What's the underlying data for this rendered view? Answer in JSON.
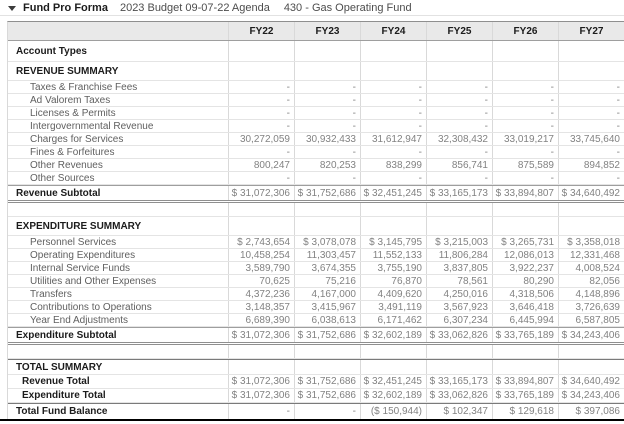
{
  "title_bar": {
    "collapse_icon": "triangle-down-icon",
    "title": "Fund Pro Forma",
    "budget_label": "2023 Budget 09-07-22 Agenda",
    "fund_label": "430 - Gas Operating Fund"
  },
  "table": {
    "column_headers": [
      "FY22",
      "FY23",
      "FY24",
      "FY25",
      "FY26",
      "FY27"
    ],
    "rows": [
      {
        "type": "tall",
        "label": "Account Types",
        "values": [
          "",
          "",
          "",
          "",
          "",
          ""
        ]
      },
      {
        "type": "section",
        "label": "REVENUE SUMMARY",
        "values": [
          "",
          "",
          "",
          "",
          "",
          ""
        ]
      },
      {
        "type": "account",
        "label": "Taxes & Franchise Fees",
        "values": [
          "-",
          "-",
          "-",
          "-",
          "-",
          "-"
        ]
      },
      {
        "type": "account",
        "label": "Ad Valorem Taxes",
        "values": [
          "-",
          "-",
          "-",
          "-",
          "-",
          "-"
        ]
      },
      {
        "type": "account",
        "label": "Licenses & Permits",
        "values": [
          "-",
          "-",
          "-",
          "-",
          "-",
          "-"
        ]
      },
      {
        "type": "account",
        "label": "Intergovernmental Revenue",
        "values": [
          "-",
          "-",
          "-",
          "-",
          "-",
          "-"
        ]
      },
      {
        "type": "account",
        "label": "Charges for Services",
        "values": [
          "30,272,059",
          "30,932,433",
          "31,612,947",
          "32,308,432",
          "33,019,217",
          "33,745,640"
        ]
      },
      {
        "type": "account",
        "label": "Fines & Forfeitures",
        "values": [
          "-",
          "-",
          "-",
          "-",
          "-",
          "-"
        ]
      },
      {
        "type": "account",
        "label": "Other Revenues",
        "values": [
          "800,247",
          "820,253",
          "838,299",
          "856,741",
          "875,589",
          "894,852"
        ]
      },
      {
        "type": "account",
        "label": "Other Sources",
        "values": [
          "-",
          "-",
          "-",
          "-",
          "-",
          "-"
        ]
      },
      {
        "type": "subtotal",
        "label": "Revenue Subtotal",
        "values": [
          "$ 31,072,306",
          "$ 31,752,686",
          "$ 32,451,245",
          "$ 33,165,173",
          "$ 33,894,807",
          "$ 34,640,492"
        ]
      },
      {
        "type": "blank",
        "label": "",
        "values": [
          "",
          "",
          "",
          "",
          "",
          ""
        ]
      },
      {
        "type": "section",
        "label": "EXPENDITURE SUMMARY",
        "values": [
          "",
          "",
          "",
          "",
          "",
          ""
        ]
      },
      {
        "type": "account",
        "label": "Personnel Services",
        "values": [
          "$ 2,743,654",
          "$ 3,078,078",
          "$ 3,145,795",
          "$ 3,215,003",
          "$ 3,265,731",
          "$ 3,358,018"
        ]
      },
      {
        "type": "account",
        "label": "Operating Expenditures",
        "values": [
          "10,458,254",
          "11,303,457",
          "11,552,133",
          "11,806,284",
          "12,086,013",
          "12,331,468"
        ]
      },
      {
        "type": "account",
        "label": "Internal Service Funds",
        "values": [
          "3,589,790",
          "3,674,355",
          "3,755,190",
          "3,837,805",
          "3,922,237",
          "4,008,524"
        ]
      },
      {
        "type": "account",
        "label": "Utilities and Other Expenses",
        "values": [
          "70,625",
          "75,216",
          "76,870",
          "78,561",
          "80,290",
          "82,056"
        ]
      },
      {
        "type": "account",
        "label": "Transfers",
        "values": [
          "4,372,236",
          "4,167,000",
          "4,409,620",
          "4,250,016",
          "4,318,506",
          "4,148,896"
        ]
      },
      {
        "type": "account",
        "label": "Contributions to Operations",
        "values": [
          "3,148,357",
          "3,415,967",
          "3,491,119",
          "3,567,923",
          "3,646,418",
          "3,726,639"
        ]
      },
      {
        "type": "account",
        "label": "Year End Adjustments",
        "values": [
          "6,689,390",
          "6,038,613",
          "6,171,462",
          "6,307,234",
          "6,445,994",
          "6,587,805"
        ]
      },
      {
        "type": "subtotal",
        "label": "Expenditure Subtotal",
        "values": [
          "$ 31,072,306",
          "$ 31,752,686",
          "$ 32,602,189",
          "$ 33,062,826",
          "$ 33,765,189",
          "$ 34,243,406"
        ]
      },
      {
        "type": "blank",
        "label": "",
        "values": [
          "",
          "",
          "",
          "",
          "",
          ""
        ]
      },
      {
        "type": "section2",
        "label": "TOTAL SUMMARY",
        "values": [
          "",
          "",
          "",
          "",
          "",
          ""
        ]
      },
      {
        "type": "total",
        "label": "Revenue Total",
        "values": [
          "$ 31,072,306",
          "$ 31,752,686",
          "$ 32,451,245",
          "$ 33,165,173",
          "$ 33,894,807",
          "$ 34,640,492"
        ]
      },
      {
        "type": "total",
        "label": "Expenditure Total",
        "values": [
          "$ 31,072,306",
          "$ 31,752,686",
          "$ 32,602,189",
          "$ 33,062,826",
          "$ 33,765,189",
          "$ 34,243,406"
        ]
      },
      {
        "type": "grand",
        "label": "Total Fund Balance",
        "values": [
          "-",
          "-",
          "($ 150,944)",
          "$ 102,347",
          "$ 129,618",
          "$ 397,086"
        ]
      }
    ]
  },
  "colors": {
    "header_bg": "#e9e9e9",
    "grid_line": "#d9d9d9",
    "strong_line": "#9e9e9e",
    "bottom_bar": "#000000",
    "bold_text": "#1c1c1c",
    "muted_text": "#828282"
  }
}
